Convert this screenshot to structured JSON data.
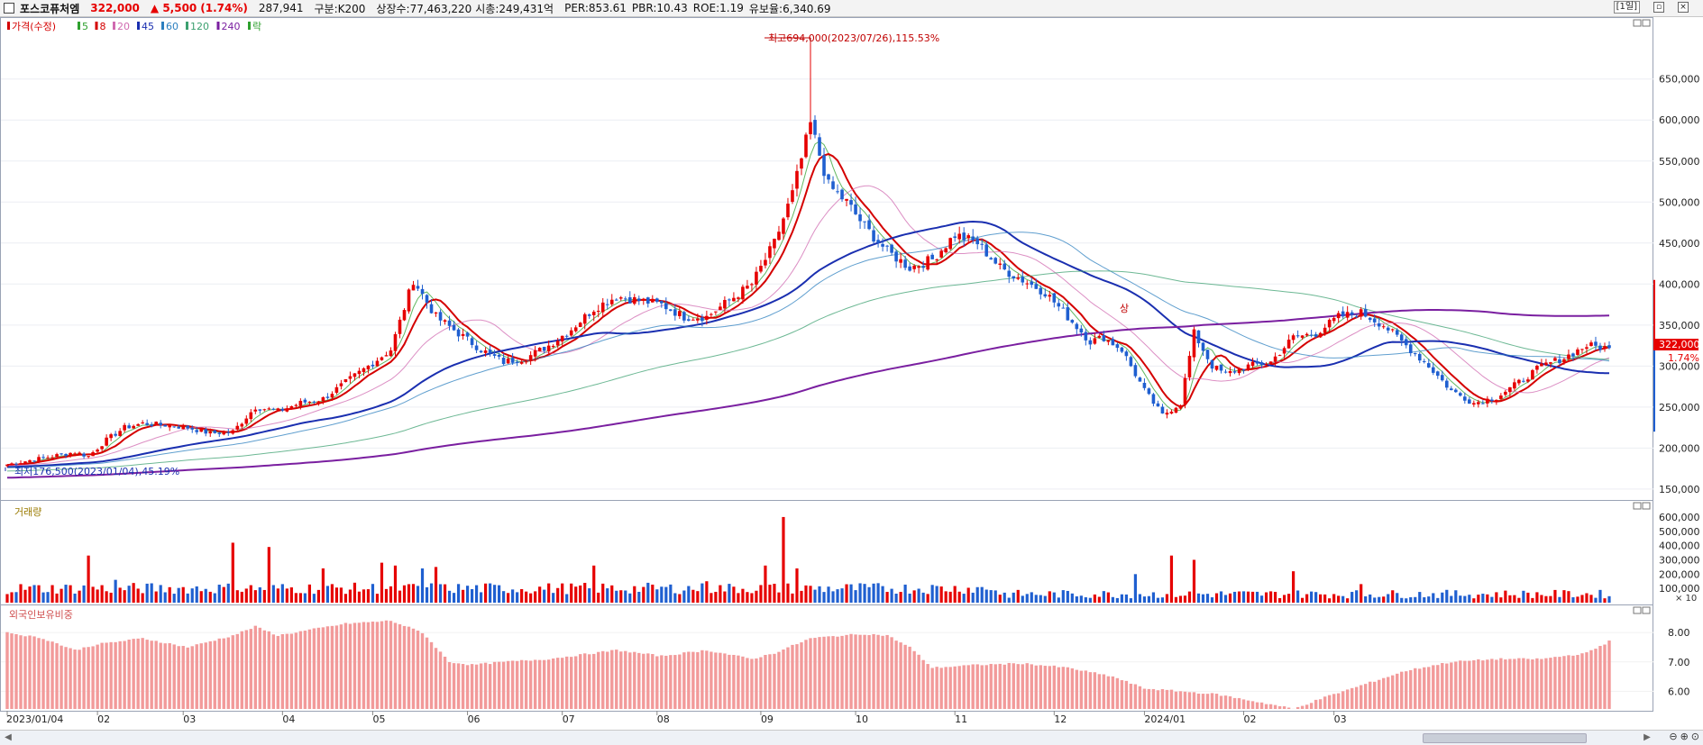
{
  "header": {
    "stock_name": "포스코퓨처엠",
    "price": "322,000",
    "change": "▲ 5,500",
    "change_pct": "(1.74%)",
    "volume": "287,941",
    "market": "구분:K200",
    "shares": "상장수:77,463,220",
    "market_cap": "시총:249,431억",
    "per": "PER:853.61",
    "pbr": "PBR:10.43",
    "roe": "ROE:1.19",
    "float_ratio": "유보율:6,340.69",
    "period_button": "[1일]"
  },
  "price_panel": {
    "legend": [
      {
        "label": "가격(수정)",
        "color": "#d40000"
      },
      {
        "label": "5",
        "color": "#2ea02e"
      },
      {
        "label": "8",
        "color": "#d40000"
      },
      {
        "label": "20",
        "color": "#d06ab0"
      },
      {
        "label": "45",
        "color": "#1a2fb0"
      },
      {
        "label": "60",
        "color": "#2b7fbf"
      },
      {
        "label": "120",
        "color": "#3ca070"
      },
      {
        "label": "240",
        "color": "#7a1fa0"
      },
      {
        "label": "락",
        "color": "#2ea02e"
      }
    ],
    "high_annotation": "최고694,000(2023/07/26),115.53%",
    "low_annotation": "최저176,500(2023/01/04),45.19%",
    "marker_label": "상",
    "current_price_tag": "322,000",
    "current_pct_tag": "1.74%",
    "y_ticks": [
      "650,000",
      "600,000",
      "550,000",
      "500,000",
      "450,000",
      "400,000",
      "350,000",
      "300,000",
      "250,000",
      "200,000",
      "150,000"
    ]
  },
  "volume_panel": {
    "title": "거래량",
    "y_ticks": [
      "600,000",
      "500,000",
      "400,000",
      "300,000",
      "200,000",
      "100,000"
    ],
    "unit": "× 10"
  },
  "foreign_panel": {
    "title": "외국인보유비중",
    "y_ticks": [
      "8.00",
      "7.00",
      "6.00"
    ]
  },
  "x_ticks": [
    "2023/01/04",
    "02",
    "03",
    "04",
    "05",
    "06",
    "07",
    "08",
    "09",
    "10",
    "11",
    "12",
    "2024/01",
    "02",
    "03"
  ],
  "colors": {
    "up": "#e60000",
    "down": "#1f5fd0",
    "foreign_bar": "#f29a9a"
  },
  "chart_data": {
    "type": "candlestick",
    "x_start": "2023/01/04",
    "close_anchors": [
      [
        0,
        180000
      ],
      [
        5,
        185000
      ],
      [
        10,
        190000
      ],
      [
        15,
        195000
      ],
      [
        18,
        190000
      ],
      [
        22,
        210000
      ],
      [
        26,
        225000
      ],
      [
        30,
        230000
      ],
      [
        35,
        228000
      ],
      [
        40,
        225000
      ],
      [
        45,
        218000
      ],
      [
        50,
        220000
      ],
      [
        55,
        250000
      ],
      [
        60,
        245000
      ],
      [
        65,
        255000
      ],
      [
        70,
        260000
      ],
      [
        75,
        280000
      ],
      [
        80,
        300000
      ],
      [
        85,
        320000
      ],
      [
        90,
        405000
      ],
      [
        95,
        360000
      ],
      [
        100,
        340000
      ],
      [
        105,
        320000
      ],
      [
        110,
        305000
      ],
      [
        115,
        310000
      ],
      [
        120,
        325000
      ],
      [
        125,
        345000
      ],
      [
        130,
        370000
      ],
      [
        135,
        385000
      ],
      [
        140,
        380000
      ],
      [
        145,
        375000
      ],
      [
        150,
        360000
      ],
      [
        155,
        360000
      ],
      [
        160,
        380000
      ],
      [
        165,
        400000
      ],
      [
        170,
        450000
      ],
      [
        174,
        510000
      ],
      [
        178,
        595000
      ],
      [
        182,
        520000
      ],
      [
        186,
        500000
      ],
      [
        190,
        470000
      ],
      [
        195,
        440000
      ],
      [
        200,
        420000
      ],
      [
        205,
        430000
      ],
      [
        210,
        460000
      ],
      [
        215,
        450000
      ],
      [
        220,
        420000
      ],
      [
        225,
        405000
      ],
      [
        230,
        390000
      ],
      [
        235,
        360000
      ],
      [
        240,
        330000
      ],
      [
        243,
        335000
      ],
      [
        247,
        320000
      ],
      [
        252,
        270000
      ],
      [
        256,
        240000
      ],
      [
        260,
        255000
      ],
      [
        263,
        340000
      ],
      [
        267,
        300000
      ],
      [
        270,
        290000
      ],
      [
        275,
        300000
      ],
      [
        280,
        305000
      ],
      [
        285,
        335000
      ],
      [
        290,
        340000
      ],
      [
        295,
        360000
      ],
      [
        300,
        365000
      ],
      [
        305,
        350000
      ],
      [
        310,
        325000
      ],
      [
        315,
        300000
      ],
      [
        320,
        270000
      ],
      [
        325,
        255000
      ],
      [
        330,
        262000
      ],
      [
        335,
        280000
      ],
      [
        340,
        300000
      ],
      [
        345,
        310000
      ],
      [
        350,
        325000
      ],
      [
        355,
        322000
      ]
    ],
    "high_point": {
      "date": "2023/07/26",
      "value": 694000
    },
    "low_point": {
      "date": "2023/01/04",
      "value": 176500
    },
    "last_close": 322000,
    "y_range": [
      140000,
      720000
    ],
    "volume_range": [
      0,
      650000
    ],
    "volume_spikes": [
      [
        18,
        330000
      ],
      [
        24,
        160000
      ],
      [
        50,
        420000
      ],
      [
        58,
        390000
      ],
      [
        70,
        240000
      ],
      [
        83,
        280000
      ],
      [
        86,
        260000
      ],
      [
        92,
        240000
      ],
      [
        95,
        250000
      ],
      [
        130,
        260000
      ],
      [
        155,
        150000
      ],
      [
        168,
        260000
      ],
      [
        172,
        600000
      ],
      [
        175,
        240000
      ],
      [
        250,
        200000
      ],
      [
        258,
        330000
      ],
      [
        263,
        300000
      ],
      [
        285,
        220000
      ],
      [
        300,
        130000
      ]
    ],
    "foreign_ratio_anchors": [
      [
        0,
        8.0
      ],
      [
        8,
        7.8
      ],
      [
        15,
        7.4
      ],
      [
        20,
        7.6
      ],
      [
        30,
        7.8
      ],
      [
        40,
        7.5
      ],
      [
        50,
        7.9
      ],
      [
        55,
        8.2
      ],
      [
        60,
        7.9
      ],
      [
        75,
        8.3
      ],
      [
        85,
        8.4
      ],
      [
        92,
        8.0
      ],
      [
        98,
        7.0
      ],
      [
        103,
        6.9
      ],
      [
        110,
        7.0
      ],
      [
        120,
        7.1
      ],
      [
        130,
        7.3
      ],
      [
        135,
        7.4
      ],
      [
        145,
        7.2
      ],
      [
        155,
        7.4
      ],
      [
        165,
        7.1
      ],
      [
        170,
        7.3
      ],
      [
        178,
        7.8
      ],
      [
        185,
        7.9
      ],
      [
        190,
        7.95
      ],
      [
        195,
        7.9
      ],
      [
        200,
        7.5
      ],
      [
        205,
        6.8
      ],
      [
        215,
        6.9
      ],
      [
        225,
        6.95
      ],
      [
        235,
        6.8
      ],
      [
        245,
        6.5
      ],
      [
        252,
        6.1
      ],
      [
        260,
        6.0
      ],
      [
        268,
        5.9
      ],
      [
        275,
        5.7
      ],
      [
        282,
        5.5
      ],
      [
        285,
        5.4
      ],
      [
        292,
        5.8
      ],
      [
        300,
        6.2
      ],
      [
        310,
        6.7
      ],
      [
        320,
        7.0
      ],
      [
        330,
        7.1
      ],
      [
        340,
        7.1
      ],
      [
        350,
        7.3
      ],
      [
        355,
        7.7
      ]
    ],
    "foreign_range": [
      5.4,
      8.8
    ]
  }
}
